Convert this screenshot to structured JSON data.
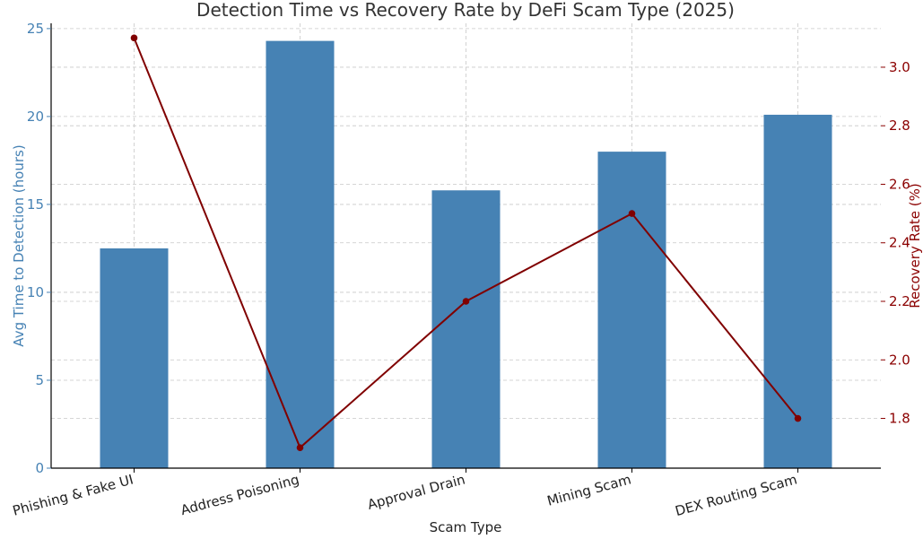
{
  "colors": {
    "bars": "#4682b4",
    "line": "#800000",
    "left_axis_text": "#4682b4",
    "right_axis_text": "#8b0000",
    "grid": "#c8c8c8"
  },
  "chart_data": {
    "type": "bar",
    "title": "Detection Time vs Recovery Rate by DeFi Scam Type (2025)",
    "xlabel": "Scam Type",
    "ylabel": "Avg Time to Detection (hours)",
    "y2label": "Recovery Rate (%)",
    "categories": [
      "Phishing & Fake UI",
      "Address Poisoning",
      "Approval Drain",
      "Mining Scam",
      "DEX Routing Scam"
    ],
    "ylim": [
      0,
      25.3
    ],
    "yticks": [
      0,
      5,
      10,
      15,
      20,
      25
    ],
    "y2lim": [
      1.63,
      3.15
    ],
    "y2ticks": [
      "1.8",
      "2.0",
      "2.2",
      "2.4",
      "2.6",
      "2.8",
      "3.0"
    ],
    "grid": true,
    "series": [
      {
        "name": "Avg Time to Detection (hours)",
        "type": "bar",
        "axis": "left",
        "values": [
          12.5,
          24.3,
          15.8,
          18.0,
          20.1
        ]
      },
      {
        "name": "Recovery Rate (%)",
        "type": "line",
        "axis": "right",
        "values": [
          3.1,
          1.7,
          2.2,
          2.5,
          1.8
        ]
      }
    ]
  }
}
